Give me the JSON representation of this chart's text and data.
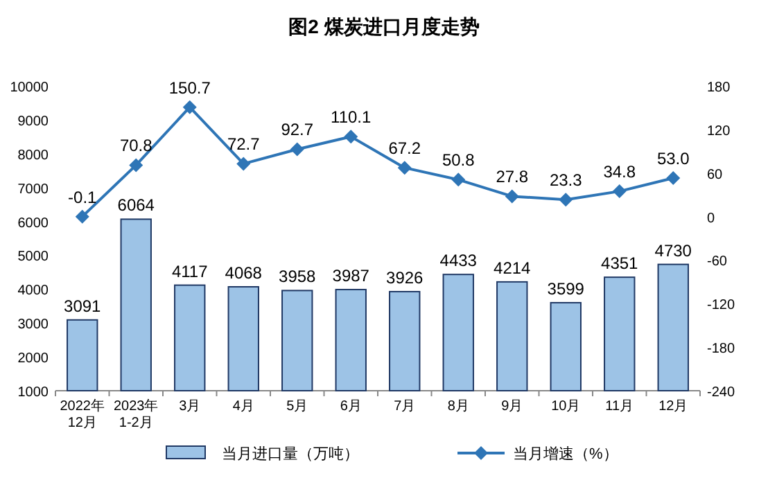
{
  "chart_data": {
    "type": "bar",
    "title": "图2 煤炭进口月度走势",
    "categories": [
      "2022年\n12月",
      "2023年\n1-2月",
      "3月",
      "4月",
      "5月",
      "6月",
      "7月",
      "8月",
      "9月",
      "10月",
      "11月",
      "12月"
    ],
    "series": [
      {
        "name": "当月进口量（万吨）",
        "color": "#9dc3e6",
        "values": [
          3091,
          6064,
          4117,
          4068,
          3958,
          3987,
          3926,
          4433,
          4214,
          3599,
          4351,
          4730
        ],
        "value_labels": [
          "3091",
          "6064",
          "4117",
          "4068",
          "3958",
          "3987",
          "3926",
          "4433",
          "4214",
          "3599",
          "4351",
          "4730"
        ]
      },
      {
        "name": "当月增速（%）",
        "type": "line",
        "axis": "y2",
        "color": "#2e75b6",
        "values": [
          -0.1,
          70.8,
          150.7,
          72.7,
          92.7,
          110.1,
          67.2,
          50.8,
          27.8,
          23.3,
          34.8,
          53.0
        ],
        "value_labels": [
          "-0.1",
          "70.8",
          "150.7",
          "72.7",
          "92.7",
          "110.1",
          "67.2",
          "50.8",
          "27.8",
          "23.3",
          "34.8",
          "53.0"
        ]
      }
    ],
    "ylim": [
      1000,
      10000
    ],
    "yticks": [
      1000,
      2000,
      3000,
      4000,
      5000,
      6000,
      7000,
      8000,
      9000,
      10000
    ],
    "y2lim": [
      -240,
      180
    ],
    "y2ticks": [
      -240,
      -180,
      -120,
      -60,
      0,
      60,
      120,
      180
    ],
    "legend": "bottom",
    "marker": "diamond",
    "grid": false
  }
}
